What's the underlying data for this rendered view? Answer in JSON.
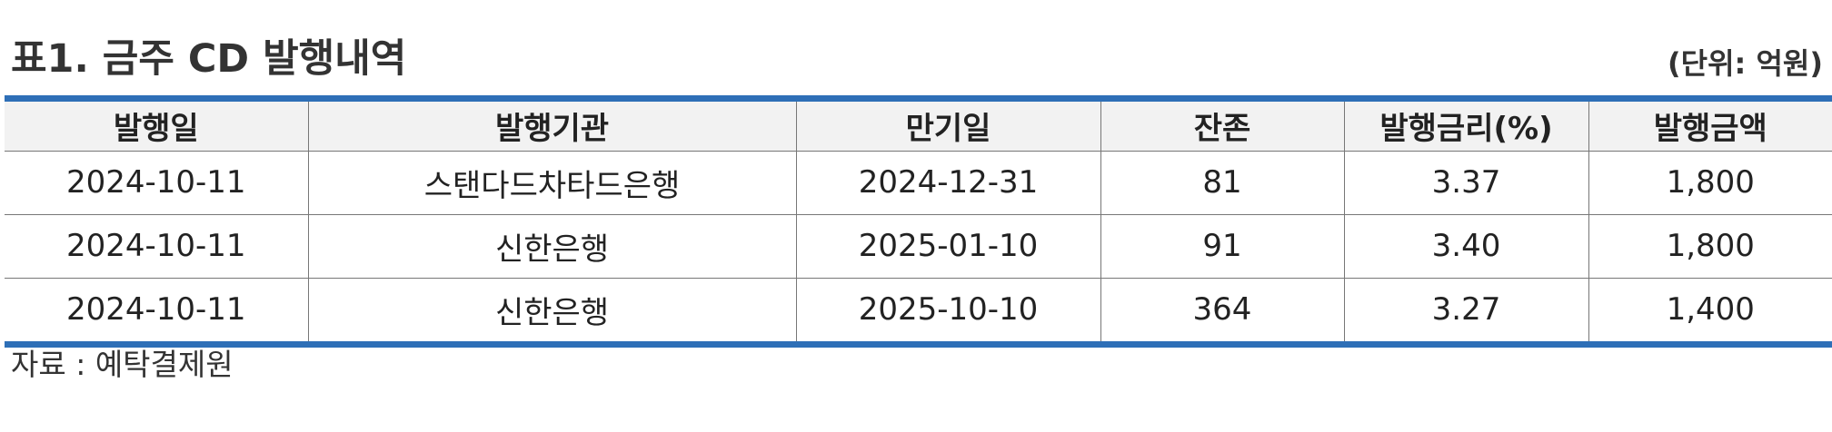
{
  "title": "표1. 금주 CD 발행내역",
  "unit": "(단위: 억원)",
  "table": {
    "columns": [
      "발행일",
      "발행기관",
      "만기일",
      "잔존",
      "발행금리(%)",
      "발행금액"
    ],
    "rows": [
      [
        "2024-10-11",
        "스탠다드차타드은행",
        "2024-12-31",
        "81",
        "3.37",
        "1,800"
      ],
      [
        "2024-10-11",
        "신한은행",
        "2025-01-10",
        "91",
        "3.40",
        "1,800"
      ],
      [
        "2024-10-11",
        "신한은행",
        "2025-10-10",
        "364",
        "3.27",
        "1,400"
      ]
    ]
  },
  "source": "자료 : 예탁결제원",
  "colors": {
    "rule": "#2e6fb7",
    "header_bg": "#f2f2f2"
  }
}
